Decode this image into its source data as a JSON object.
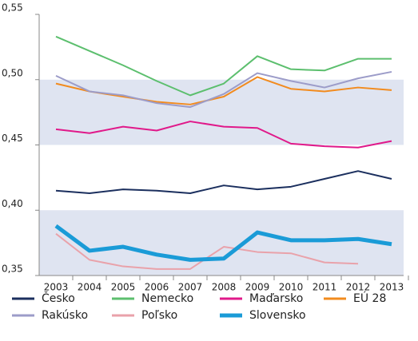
{
  "chart_data": {
    "type": "line",
    "categories": [
      "2003",
      "2004",
      "2005",
      "2006",
      "2007",
      "2008",
      "2009",
      "2010",
      "2011",
      "2012",
      "2013"
    ],
    "ylim": [
      0.35,
      0.55
    ],
    "yticks": [
      {
        "value": 0.35,
        "label": "0,35"
      },
      {
        "value": 0.4,
        "label": "0,40"
      },
      {
        "value": 0.45,
        "label": "0,45"
      },
      {
        "value": 0.5,
        "label": "0,50"
      },
      {
        "value": 0.55,
        "label": "0,55"
      }
    ],
    "alternating_bands": true,
    "band_color": "#dfe4f1",
    "series": [
      {
        "name": "Česko",
        "color": "#1b2f5e",
        "width": 2,
        "values": [
          0.415,
          0.413,
          0.416,
          0.415,
          0.413,
          0.419,
          0.416,
          0.418,
          0.424,
          0.43,
          0.424
        ]
      },
      {
        "name": "Nemecko",
        "color": "#5cbf6e",
        "width": 2,
        "values": [
          0.533,
          0.522,
          0.511,
          0.499,
          0.488,
          0.497,
          0.518,
          0.508,
          0.507,
          0.516,
          0.516
        ]
      },
      {
        "name": "Maďarsko",
        "color": "#e0198a",
        "width": 2,
        "values": [
          0.462,
          0.459,
          0.464,
          0.461,
          0.468,
          0.464,
          0.463,
          0.451,
          0.449,
          0.448,
          0.453
        ]
      },
      {
        "name": "EÚ 28",
        "color": "#f28b1e",
        "width": 2,
        "values": [
          0.497,
          0.491,
          0.487,
          0.483,
          0.481,
          0.487,
          0.502,
          0.493,
          0.491,
          0.494,
          0.492
        ]
      },
      {
        "name": "Rakúsko",
        "color": "#9c9cc9",
        "width": 2,
        "values": [
          0.503,
          0.491,
          0.488,
          0.482,
          0.479,
          0.489,
          0.505,
          0.499,
          0.494,
          0.501,
          0.506
        ]
      },
      {
        "name": "Poľsko",
        "color": "#e9a2aa",
        "width": 2,
        "values": [
          0.382,
          0.362,
          0.357,
          0.355,
          0.355,
          0.372,
          0.368,
          0.367,
          0.36,
          0.359,
          null
        ]
      },
      {
        "name": "Slovensko",
        "color": "#1a9bd7",
        "width": 5,
        "values": [
          0.388,
          0.369,
          0.372,
          0.366,
          0.362,
          0.363,
          0.383,
          0.377,
          0.377,
          0.378,
          0.374
        ]
      }
    ]
  }
}
